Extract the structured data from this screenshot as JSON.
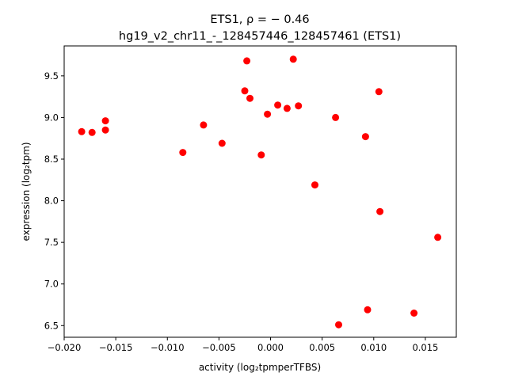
{
  "chart_data": {
    "type": "scatter",
    "title_line1": "ETS1, ρ = − 0.46",
    "title_line2": "hg19_v2_chr11_-_128457446_128457461 (ETS1)",
    "xlabel": "activity (log₂tpmperTFBS)",
    "ylabel": "expression (log₂tpm)",
    "xlim": [
      -0.02,
      0.018
    ],
    "ylim": [
      6.36,
      9.86
    ],
    "xticks": [
      -0.02,
      -0.015,
      -0.01,
      -0.005,
      0.0,
      0.005,
      0.01,
      0.015
    ],
    "xtick_labels": [
      "−0.020",
      "−0.015",
      "−0.010",
      "−0.005",
      "0.000",
      "0.005",
      "0.010",
      "0.015"
    ],
    "yticks": [
      6.5,
      7.0,
      7.5,
      8.0,
      8.5,
      9.0,
      9.5
    ],
    "ytick_labels": [
      "6.5",
      "7.0",
      "7.5",
      "8.0",
      "8.5",
      "9.0",
      "9.5"
    ],
    "marker_color": "#ff0000",
    "grid": false,
    "points": [
      {
        "x": -0.0183,
        "y": 8.83
      },
      {
        "x": -0.0173,
        "y": 8.82
      },
      {
        "x": -0.016,
        "y": 8.96
      },
      {
        "x": -0.016,
        "y": 8.85
      },
      {
        "x": -0.0085,
        "y": 8.58
      },
      {
        "x": -0.0065,
        "y": 8.91
      },
      {
        "x": -0.0047,
        "y": 8.69
      },
      {
        "x": -0.0025,
        "y": 9.32
      },
      {
        "x": -0.0023,
        "y": 9.68
      },
      {
        "x": -0.002,
        "y": 9.23
      },
      {
        "x": -0.0009,
        "y": 8.55
      },
      {
        "x": -0.0003,
        "y": 9.04
      },
      {
        "x": 0.0007,
        "y": 9.15
      },
      {
        "x": 0.0016,
        "y": 9.11
      },
      {
        "x": 0.0022,
        "y": 9.7
      },
      {
        "x": 0.0027,
        "y": 9.14
      },
      {
        "x": 0.0043,
        "y": 8.19
      },
      {
        "x": 0.0063,
        "y": 9.0
      },
      {
        "x": 0.0066,
        "y": 6.51
      },
      {
        "x": 0.0092,
        "y": 8.77
      },
      {
        "x": 0.0094,
        "y": 6.69
      },
      {
        "x": 0.0105,
        "y": 9.31
      },
      {
        "x": 0.0106,
        "y": 7.87
      },
      {
        "x": 0.0139,
        "y": 6.65
      },
      {
        "x": 0.0162,
        "y": 7.56
      }
    ]
  }
}
